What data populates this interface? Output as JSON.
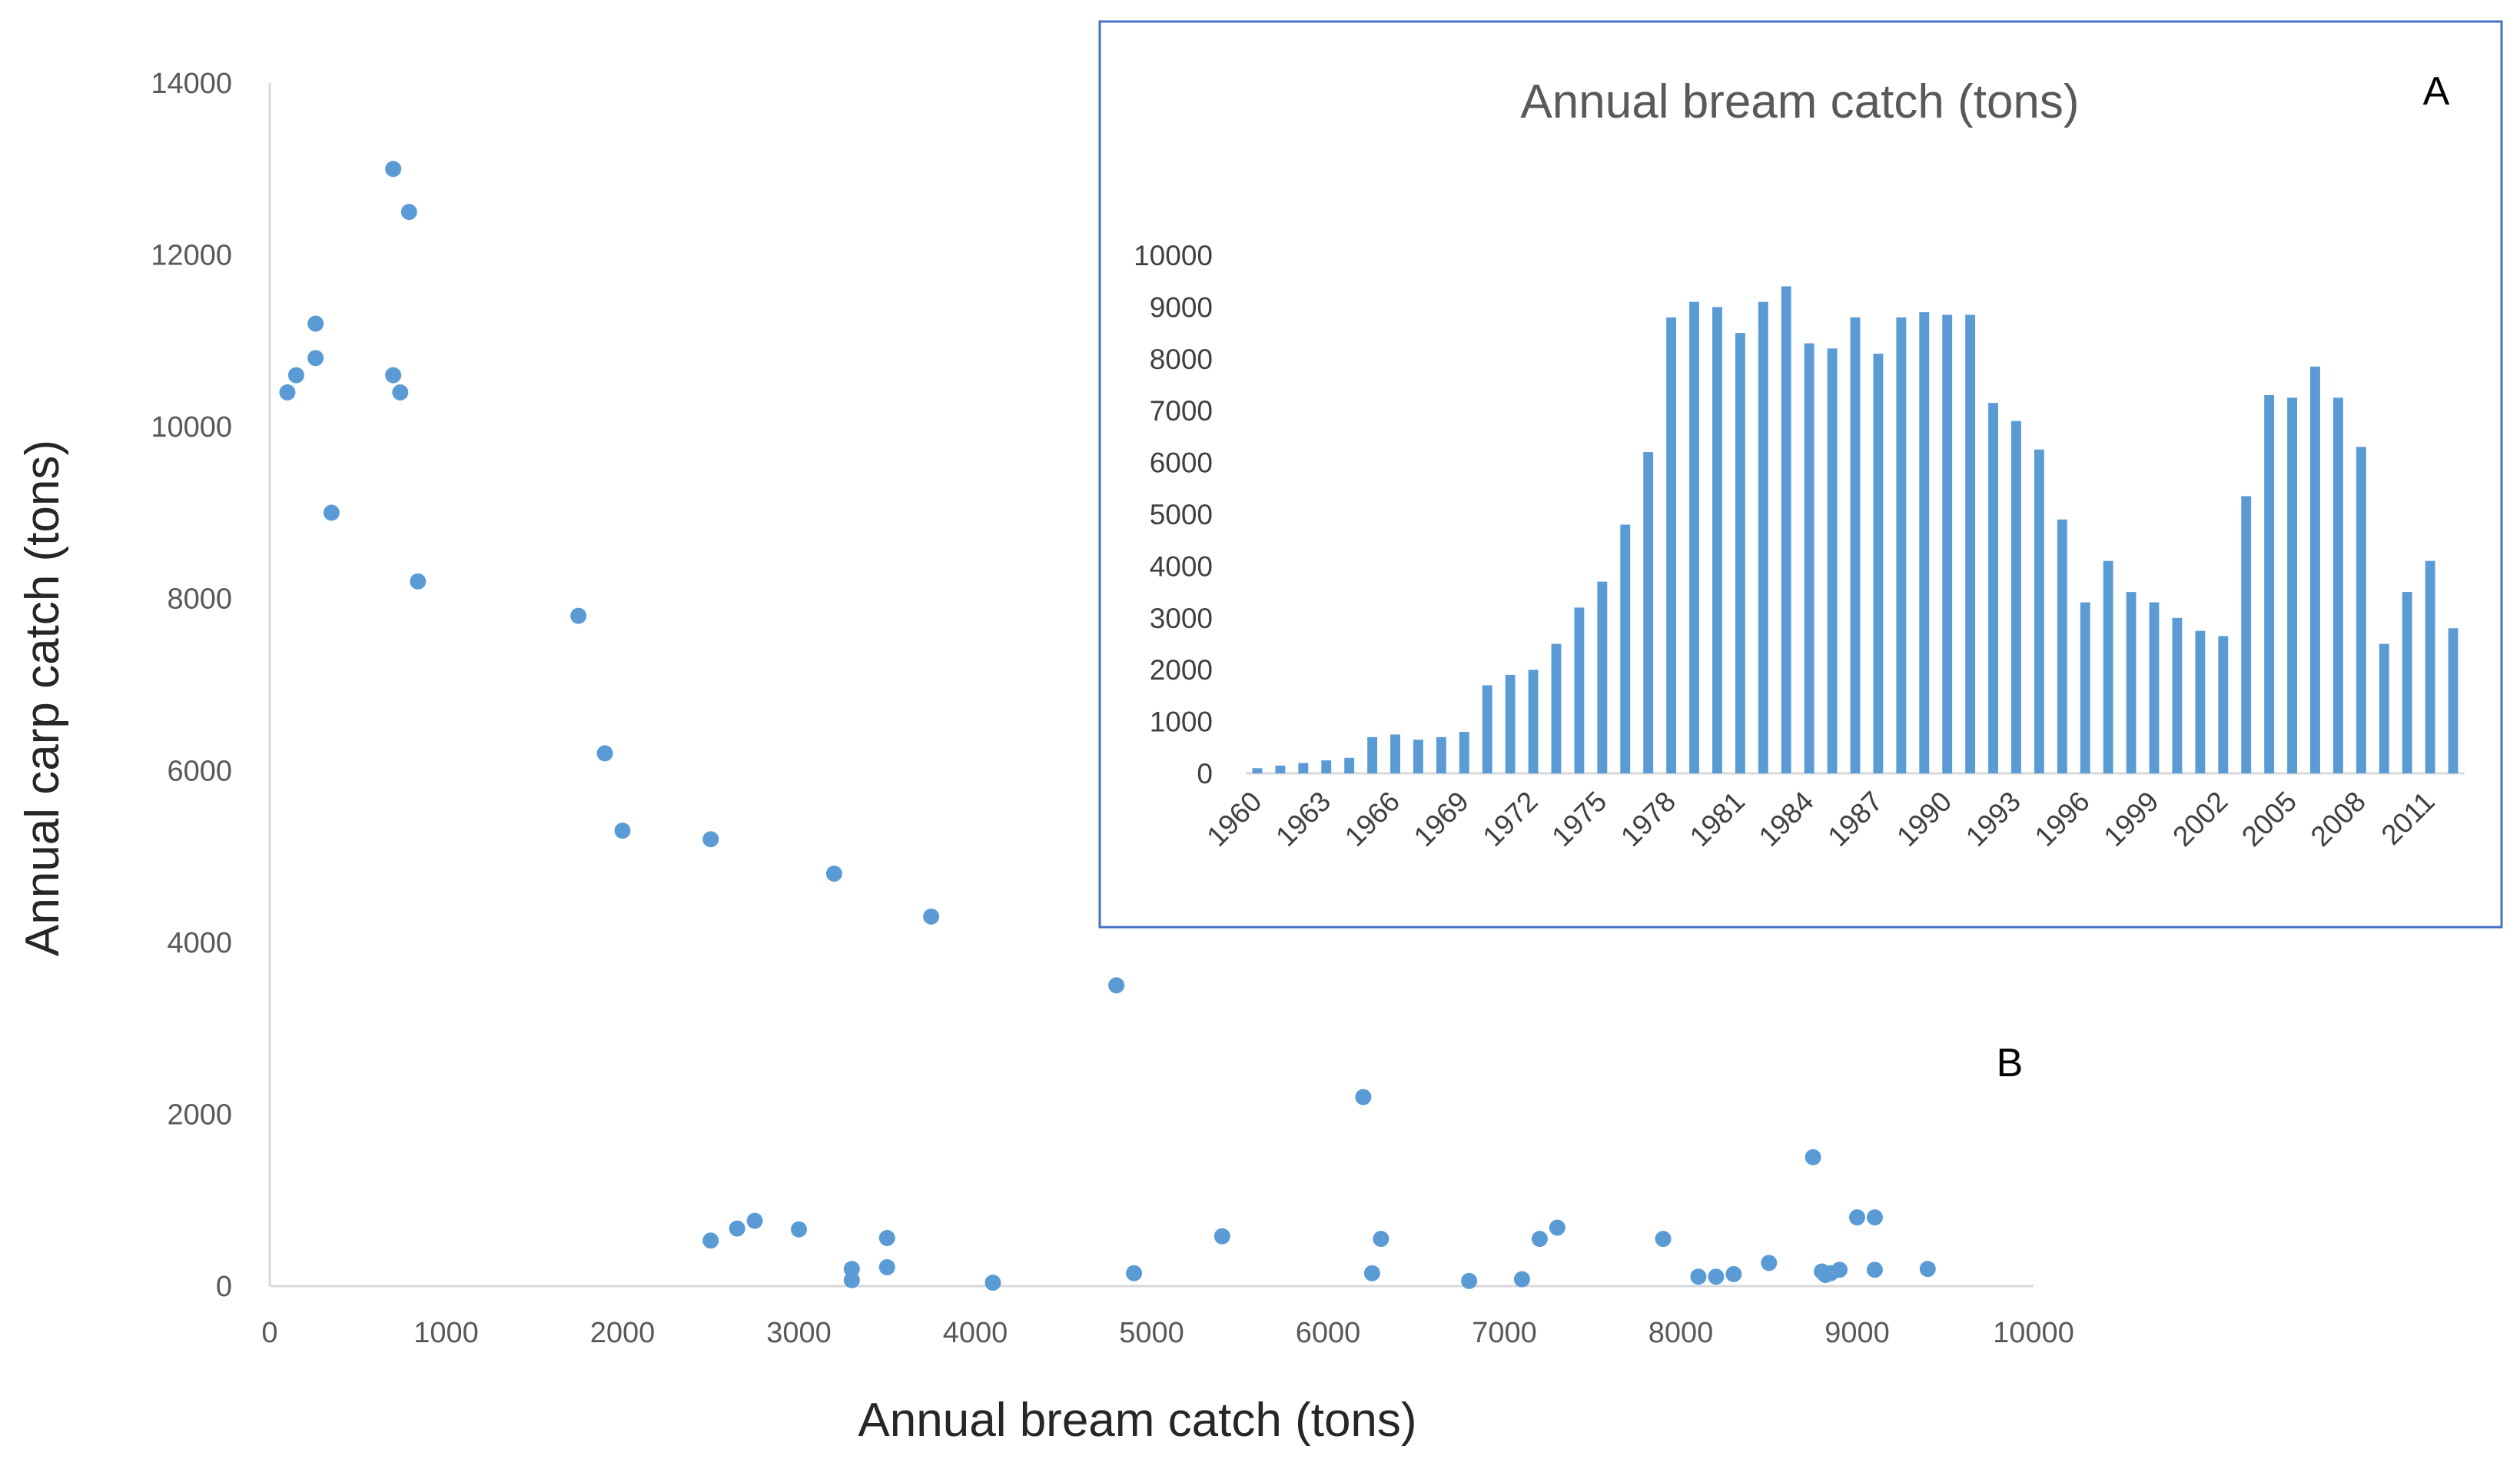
{
  "chart_data": [
    {
      "type": "scatter",
      "panel_label": "B",
      "title": "",
      "xlabel": "Annual bream catch (tons)",
      "ylabel": "Annual carp catch (tons)",
      "xlim": [
        0,
        10000
      ],
      "ylim": [
        0,
        14000
      ],
      "xticks": [
        "0",
        "1000",
        "2000",
        "3000",
        "4000",
        "5000",
        "6000",
        "7000",
        "8000",
        "9000",
        "10000"
      ],
      "yticks": [
        "0",
        "2000",
        "4000",
        "6000",
        "8000",
        "10000",
        "12000",
        "14000"
      ],
      "grid": false,
      "marker_color": "#5b9bd5",
      "points": [
        [
          100,
          10400
        ],
        [
          150,
          10600
        ],
        [
          260,
          11200
        ],
        [
          260,
          10800
        ],
        [
          350,
          9000
        ],
        [
          700,
          13000
        ],
        [
          700,
          10600
        ],
        [
          740,
          10400
        ],
        [
          790,
          12500
        ],
        [
          840,
          8200
        ],
        [
          1750,
          7800
        ],
        [
          1900,
          6200
        ],
        [
          2000,
          5300
        ],
        [
          2500,
          5200
        ],
        [
          3200,
          4800
        ],
        [
          3750,
          4300
        ],
        [
          4800,
          3500
        ],
        [
          6200,
          2200
        ],
        [
          8750,
          1500
        ],
        [
          2500,
          530
        ],
        [
          2650,
          670
        ],
        [
          2750,
          760
        ],
        [
          3000,
          660
        ],
        [
          3300,
          200
        ],
        [
          3300,
          70
        ],
        [
          3500,
          560
        ],
        [
          3500,
          220
        ],
        [
          4100,
          40
        ],
        [
          4900,
          150
        ],
        [
          5400,
          580
        ],
        [
          6250,
          150
        ],
        [
          6300,
          550
        ],
        [
          6800,
          60
        ],
        [
          7100,
          80
        ],
        [
          7200,
          550
        ],
        [
          7300,
          680
        ],
        [
          7900,
          550
        ],
        [
          8100,
          110
        ],
        [
          8200,
          110
        ],
        [
          8300,
          140
        ],
        [
          8500,
          270
        ],
        [
          8800,
          170
        ],
        [
          8820,
          130
        ],
        [
          8850,
          150
        ],
        [
          8900,
          190
        ],
        [
          9000,
          800
        ],
        [
          9100,
          800
        ],
        [
          9100,
          190
        ],
        [
          9400,
          200
        ]
      ]
    },
    {
      "type": "bar",
      "panel_label": "A",
      "title": "Annual bream catch (tons)",
      "xlabel": "",
      "ylabel": "",
      "ylim": [
        0,
        10000
      ],
      "yticks": [
        "0",
        "1000",
        "2000",
        "3000",
        "4000",
        "5000",
        "6000",
        "7000",
        "8000",
        "9000",
        "10000"
      ],
      "xtick_labels": [
        "1960",
        "1963",
        "1966",
        "1969",
        "1972",
        "1975",
        "1978",
        "1981",
        "1984",
        "1987",
        "1990",
        "1993",
        "1996",
        "1999",
        "2002",
        "2005",
        "2008",
        "2011"
      ],
      "grid": false,
      "bar_color": "#5b9bd5",
      "categories": [
        1960,
        1961,
        1962,
        1963,
        1964,
        1965,
        1966,
        1967,
        1968,
        1969,
        1970,
        1971,
        1972,
        1973,
        1974,
        1975,
        1976,
        1977,
        1978,
        1979,
        1980,
        1981,
        1982,
        1983,
        1984,
        1985,
        1986,
        1987,
        1988,
        1989,
        1990,
        1991,
        1992,
        1993,
        1994,
        1995,
        1996,
        1997,
        1998,
        1999,
        2000,
        2001,
        2002,
        2003,
        2004,
        2005,
        2006,
        2007,
        2008,
        2009,
        2010,
        2011,
        2012
      ],
      "values": [
        100,
        150,
        200,
        250,
        300,
        700,
        750,
        650,
        700,
        800,
        1700,
        1900,
        2000,
        2500,
        3200,
        3700,
        4800,
        6200,
        8800,
        9100,
        9000,
        8500,
        9100,
        9400,
        8300,
        8200,
        8800,
        8100,
        8800,
        8900,
        8850,
        8850,
        7150,
        6800,
        6250,
        4900,
        3300,
        4100,
        3500,
        3300,
        3000,
        2750,
        2650,
        5350,
        7300,
        7250,
        7850,
        7250,
        6300,
        2500,
        3500,
        4100,
        2800
      ]
    }
  ]
}
